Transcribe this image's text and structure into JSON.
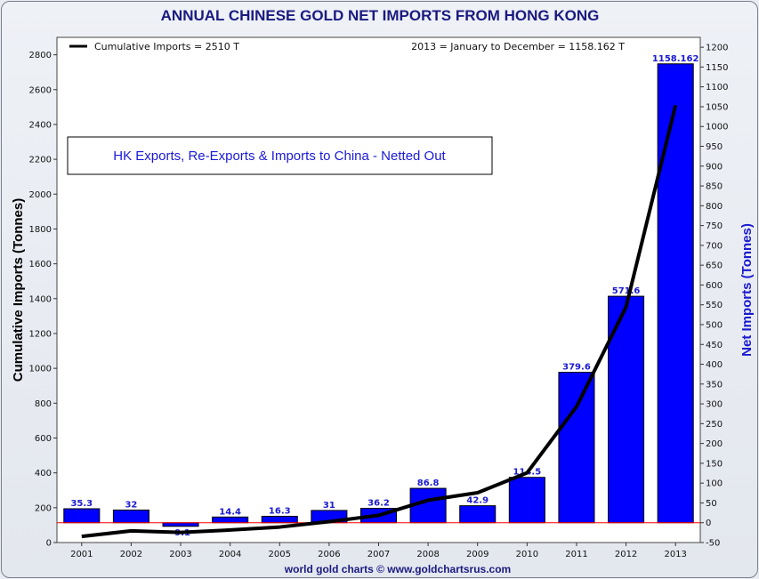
{
  "chart_data": {
    "type": "bar",
    "title": "ANNUAL CHINESE GOLD NET IMPORTS FROM HONG KONG",
    "categories": [
      "2001",
      "2002",
      "2003",
      "2004",
      "2005",
      "2006",
      "2007",
      "2008",
      "2009",
      "2010",
      "2011",
      "2012",
      "2013"
    ],
    "bar_series": {
      "axis": "right",
      "color": "#0000ff",
      "values": [
        35.3,
        32,
        -9.1,
        14.4,
        16.3,
        31,
        36.2,
        86.8,
        42.9,
        114.5,
        379.6,
        571.6,
        1158.162
      ],
      "labels": [
        "35.3",
        "32",
        "-9.1",
        "14.4",
        "16.3",
        "31",
        "36.2",
        "86.8",
        "42.9",
        "114.5",
        "379.6",
        "571.6",
        "1158.162"
      ]
    },
    "line_series": {
      "name": "Cumulative Imports = 2510 T",
      "axis": "left",
      "color": "#000000",
      "values": [
        35,
        67,
        58,
        72,
        89,
        120,
        156,
        243,
        286,
        400,
        780,
        1352,
        2510
      ]
    },
    "ylabel_left": "Cumulative Imports (Tonnes)",
    "ylabel_right": "Net Imports (Tonnes)",
    "ylim_left": [
      0,
      2900
    ],
    "ylim_right": [
      -50,
      1225
    ],
    "yticks_left": [
      0,
      200,
      400,
      600,
      800,
      1000,
      1200,
      1400,
      1600,
      1800,
      2000,
      2200,
      2400,
      2600,
      2800
    ],
    "yticks_right": [
      -50,
      0,
      50,
      100,
      150,
      200,
      250,
      300,
      350,
      400,
      450,
      500,
      550,
      600,
      650,
      700,
      750,
      800,
      850,
      900,
      950,
      1000,
      1050,
      1100,
      1150,
      1200
    ],
    "legend_note": "2013 = January to December = 1158.162 T",
    "annotation": "HK Exports, Re-Exports & Imports to China - Netted Out",
    "source": "world gold charts © www.goldchartsrus.com",
    "grid": false,
    "zero_line_color": "#ff0000"
  }
}
